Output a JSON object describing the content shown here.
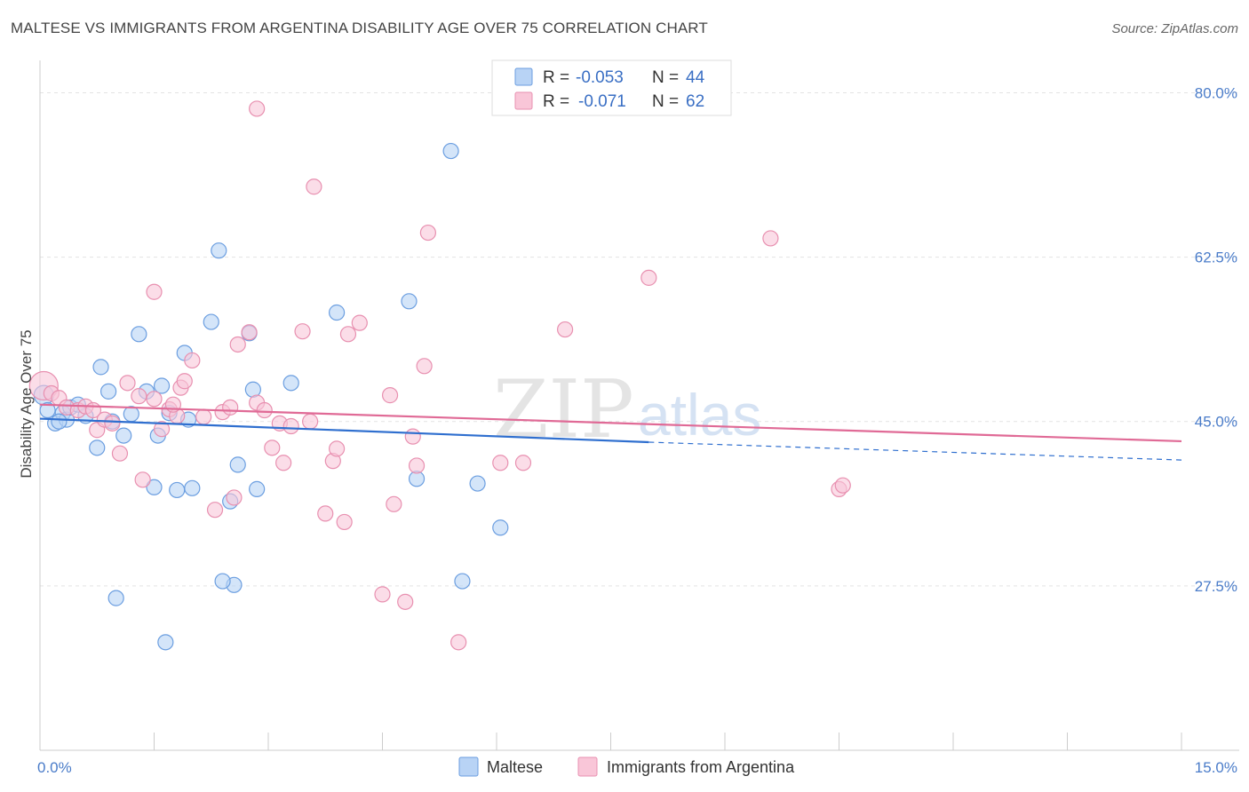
{
  "title": "MALTESE VS IMMIGRANTS FROM ARGENTINA DISABILITY AGE OVER 75 CORRELATION CHART",
  "source": "Source: ZipAtlas.com",
  "watermark": {
    "zip": "ZIP",
    "atlas": "atlas"
  },
  "colors": {
    "maltese_fill": "#b8d3f5",
    "maltese_stroke": "#6b9ee0",
    "maltese_line": "#2f6fcf",
    "argentina_fill": "#f9c6d8",
    "argentina_stroke": "#e890b0",
    "argentina_line": "#e06a96",
    "axis_text": "#4a7cc9"
  },
  "legend_top": {
    "rows": [
      {
        "r_label": "R =",
        "r_value": "-0.053",
        "n_label": "N =",
        "n_value": "44"
      },
      {
        "r_label": "R =",
        "r_value": "-0.071",
        "n_label": "N =",
        "n_value": "62"
      }
    ]
  },
  "legend_bottom": [
    "Maltese",
    "Immigrants from Argentina"
  ],
  "chart_data": {
    "type": "scatter",
    "title": "MALTESE VS IMMIGRANTS FROM ARGENTINA DISABILITY AGE OVER 75 CORRELATION CHART",
    "xlabel": "",
    "ylabel": "Disability Age Over 75",
    "xlim": [
      0,
      15
    ],
    "ylim": [
      10,
      82.5
    ],
    "x_tick_labels": [
      "0.0%",
      "15.0%"
    ],
    "y_ticks": [
      27.5,
      45.0,
      62.5,
      80.0
    ],
    "y_tick_labels": [
      "27.5%",
      "45.0%",
      "62.5%",
      "80.0%"
    ],
    "grid": "horizontal dashed",
    "legend": "top-center",
    "series": [
      {
        "name": "Maltese",
        "R": -0.053,
        "N": 44,
        "trend": {
          "x0": 0.0,
          "y0": 45.3,
          "x1": 8.0,
          "y1": 42.8,
          "dashed_to_x": 15.0,
          "dashed_to_y": 40.9
        },
        "points": [
          [
            0.05,
            47.8
          ],
          [
            0.1,
            46.2
          ],
          [
            0.2,
            44.8
          ],
          [
            0.3,
            45.9
          ],
          [
            0.35,
            45.2
          ],
          [
            0.4,
            46.5
          ],
          [
            0.5,
            46.8
          ],
          [
            0.6,
            45.6
          ],
          [
            0.75,
            42.2
          ],
          [
            0.8,
            50.8
          ],
          [
            0.9,
            48.2
          ],
          [
            0.95,
            45.0
          ],
          [
            1.1,
            43.5
          ],
          [
            1.2,
            45.8
          ],
          [
            1.3,
            54.3
          ],
          [
            1.4,
            48.2
          ],
          [
            1.5,
            38.0
          ],
          [
            1.55,
            43.5
          ],
          [
            1.6,
            48.8
          ],
          [
            1.65,
            21.5
          ],
          [
            1.7,
            45.9
          ],
          [
            1.8,
            37.7
          ],
          [
            1.9,
            52.3
          ],
          [
            1.95,
            45.2
          ],
          [
            2.0,
            37.9
          ],
          [
            2.25,
            55.6
          ],
          [
            2.35,
            63.2
          ],
          [
            2.5,
            36.5
          ],
          [
            2.55,
            27.6
          ],
          [
            2.6,
            40.4
          ],
          [
            2.75,
            54.4
          ],
          [
            2.8,
            48.4
          ],
          [
            2.85,
            37.8
          ],
          [
            3.3,
            49.1
          ],
          [
            3.9,
            56.6
          ],
          [
            4.85,
            57.8
          ],
          [
            4.95,
            38.9
          ],
          [
            5.4,
            73.8
          ],
          [
            5.55,
            28.0
          ],
          [
            5.75,
            38.4
          ],
          [
            6.05,
            33.7
          ],
          [
            1.0,
            26.2
          ],
          [
            2.4,
            28.0
          ],
          [
            0.25,
            45.0
          ]
        ]
      },
      {
        "name": "Immigrants from Argentina",
        "R": -0.071,
        "N": 62,
        "trend": {
          "x0": 0.0,
          "y0": 46.8,
          "x1": 15.0,
          "y1": 42.9
        },
        "points": [
          [
            0.05,
            48.8
          ],
          [
            0.15,
            48.0
          ],
          [
            0.25,
            47.5
          ],
          [
            0.35,
            46.5
          ],
          [
            0.5,
            46.2
          ],
          [
            0.6,
            46.6
          ],
          [
            0.7,
            46.2
          ],
          [
            0.75,
            44.1
          ],
          [
            0.85,
            45.2
          ],
          [
            0.95,
            44.8
          ],
          [
            1.05,
            41.6
          ],
          [
            1.15,
            49.1
          ],
          [
            1.3,
            47.7
          ],
          [
            1.35,
            38.8
          ],
          [
            1.5,
            47.4
          ],
          [
            1.5,
            58.8
          ],
          [
            1.6,
            44.2
          ],
          [
            1.7,
            46.3
          ],
          [
            1.8,
            45.6
          ],
          [
            1.85,
            48.6
          ],
          [
            1.9,
            49.3
          ],
          [
            2.0,
            51.5
          ],
          [
            2.15,
            45.5
          ],
          [
            2.3,
            35.6
          ],
          [
            2.4,
            46.0
          ],
          [
            2.5,
            46.5
          ],
          [
            2.55,
            36.9
          ],
          [
            2.6,
            53.2
          ],
          [
            2.75,
            54.5
          ],
          [
            2.85,
            47.0
          ],
          [
            2.85,
            78.3
          ],
          [
            2.95,
            46.2
          ],
          [
            3.05,
            42.2
          ],
          [
            3.15,
            44.8
          ],
          [
            3.2,
            40.6
          ],
          [
            3.3,
            44.5
          ],
          [
            3.45,
            54.6
          ],
          [
            3.55,
            45.0
          ],
          [
            3.6,
            70.0
          ],
          [
            3.75,
            35.2
          ],
          [
            3.85,
            40.8
          ],
          [
            3.9,
            42.1
          ],
          [
            4.0,
            34.3
          ],
          [
            4.05,
            54.3
          ],
          [
            4.2,
            55.5
          ],
          [
            4.5,
            26.6
          ],
          [
            4.6,
            47.8
          ],
          [
            4.65,
            36.2
          ],
          [
            4.8,
            25.8
          ],
          [
            4.9,
            43.4
          ],
          [
            4.95,
            40.3
          ],
          [
            5.05,
            50.9
          ],
          [
            5.1,
            65.1
          ],
          [
            5.5,
            21.5
          ],
          [
            6.05,
            40.6
          ],
          [
            6.35,
            40.6
          ],
          [
            6.9,
            54.8
          ],
          [
            8.0,
            60.3
          ],
          [
            9.6,
            64.5
          ],
          [
            10.5,
            37.8
          ],
          [
            10.55,
            38.2
          ],
          [
            1.75,
            46.8
          ]
        ]
      }
    ]
  }
}
